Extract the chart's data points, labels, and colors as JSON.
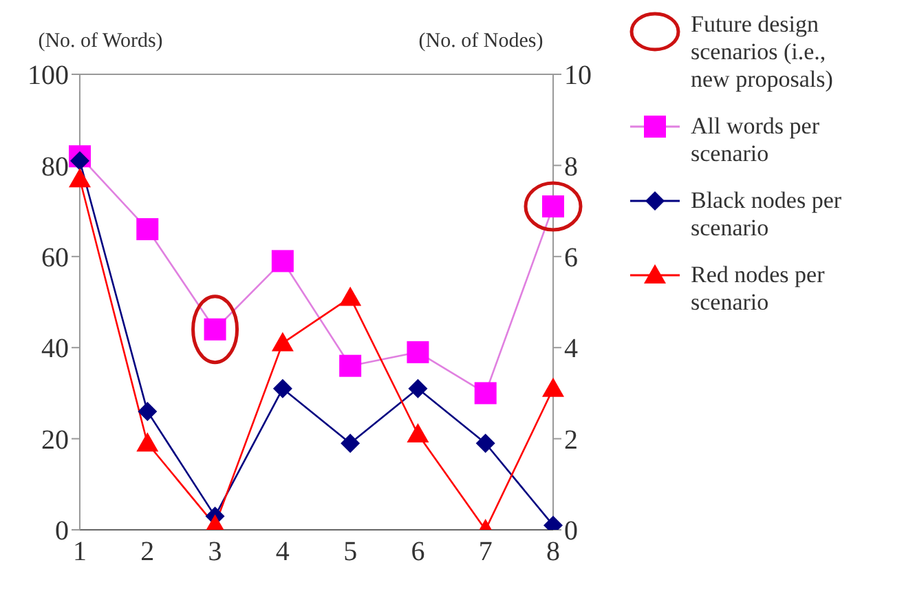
{
  "chart_data": {
    "type": "line",
    "ylabel": "(No. of Words)",
    "y2label": "(No. of Nodes)",
    "categories": [
      "1",
      "2",
      "3",
      "4",
      "5",
      "6",
      "7",
      "8"
    ],
    "series": [
      {
        "name": "All words per scenario",
        "color": "#ff00ff",
        "marker": "square",
        "values": [
          82,
          66,
          44,
          59,
          36,
          39,
          30,
          71
        ]
      },
      {
        "name": "Black nodes per scenario",
        "color": "#000080",
        "marker": "diamond",
        "axis": "y2",
        "values": [
          8.1,
          2.6,
          0.3,
          3.1,
          1.9,
          3.1,
          1.9,
          0.1
        ]
      },
      {
        "name": "Red nodes per scenario",
        "color": "#ff0000",
        "marker": "triangle",
        "axis": "y2",
        "values": [
          7.7,
          1.9,
          0.1,
          4.1,
          5.1,
          2.1,
          0,
          3.1
        ]
      }
    ],
    "ylim": [
      0,
      100
    ],
    "yticks": [
      0,
      20,
      40,
      60,
      80,
      100
    ],
    "y2lim": [
      0,
      10
    ],
    "y2ticks": [
      0,
      2,
      4,
      6,
      8,
      10
    ],
    "annotations": [
      "Future design scenarios (i.e., new proposals)"
    ],
    "legend": "right",
    "grid": false
  }
}
